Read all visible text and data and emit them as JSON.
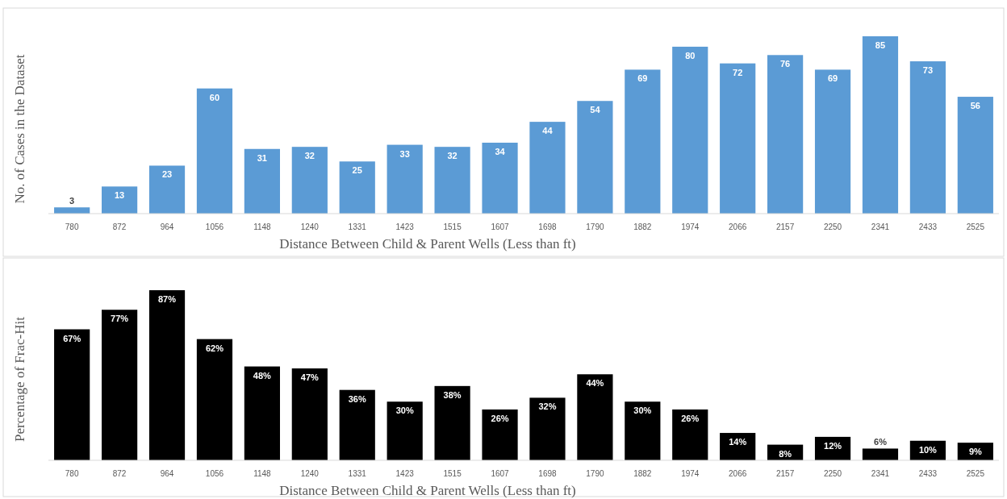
{
  "chart_data": [
    {
      "type": "bar",
      "ylabel": "No. of Cases in the Dataset",
      "xlabel": "Distance Between Child & Parent Wells (Less than ft)",
      "categories": [
        "780",
        "872",
        "964",
        "1056",
        "1148",
        "1240",
        "1331",
        "1423",
        "1515",
        "1607",
        "1698",
        "1790",
        "1882",
        "1974",
        "2066",
        "2157",
        "2250",
        "2341",
        "2433",
        "2525"
      ],
      "values": [
        3,
        13,
        23,
        60,
        31,
        32,
        25,
        33,
        32,
        34,
        44,
        54,
        69,
        80,
        72,
        76,
        69,
        85,
        73,
        56
      ],
      "color": "#5b9bd5",
      "data_labels": true
    },
    {
      "type": "bar",
      "ylabel": "Percentage of Frac-Hit",
      "xlabel": "Distance Between Child & Parent Wells (Less than ft)",
      "categories": [
        "780",
        "872",
        "964",
        "1056",
        "1148",
        "1240",
        "1331",
        "1423",
        "1515",
        "1607",
        "1698",
        "1790",
        "1882",
        "1974",
        "2066",
        "2157",
        "2250",
        "2341",
        "2433",
        "2525"
      ],
      "values": [
        67,
        77,
        87,
        62,
        48,
        47,
        36,
        30,
        38,
        26,
        32,
        44,
        30,
        26,
        14,
        8,
        12,
        6,
        10,
        9
      ],
      "value_labels": [
        "67%",
        "77%",
        "87%",
        "62%",
        "48%",
        "47%",
        "36%",
        "30%",
        "38%",
        "26%",
        "32%",
        "44%",
        "30%",
        "26%",
        "14%",
        "8%",
        "12%",
        "6%",
        "10%",
        "9%"
      ],
      "color": "#000000"
    }
  ]
}
